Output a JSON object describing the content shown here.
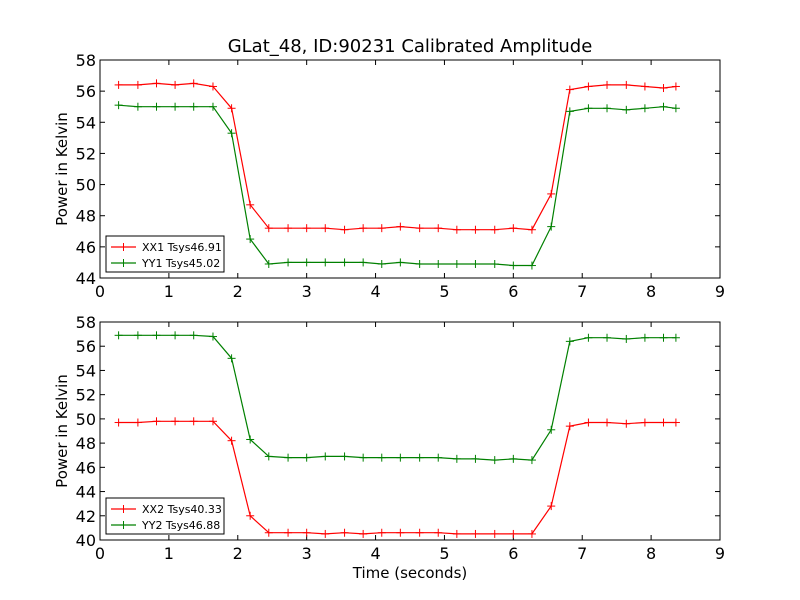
{
  "figure": {
    "title": "GLat_48, ID:90231 Calibrated Amplitude"
  },
  "chart_data": [
    {
      "type": "line",
      "title": "GLat_48, ID:90231 Calibrated Amplitude",
      "xlabel": "",
      "ylabel": "Power in Kelvin",
      "xlim": [
        0,
        9
      ],
      "ylim": [
        44,
        58
      ],
      "x_ticks": [
        0,
        1,
        2,
        3,
        4,
        5,
        6,
        7,
        8,
        9
      ],
      "y_ticks": [
        44,
        46,
        48,
        50,
        52,
        54,
        56,
        58
      ],
      "legend_position": "lower-left",
      "x": [
        0.27,
        0.55,
        0.82,
        1.09,
        1.36,
        1.64,
        1.91,
        2.18,
        2.45,
        2.73,
        3.0,
        3.27,
        3.55,
        3.82,
        4.09,
        4.36,
        4.64,
        4.91,
        5.18,
        5.45,
        5.73,
        6.0,
        6.27,
        6.55,
        6.82,
        7.09,
        7.36,
        7.64,
        7.91,
        8.18,
        8.36
      ],
      "series": [
        {
          "name": "XX1 Tsys46.91",
          "color": "#ff0000",
          "values": [
            56.4,
            56.4,
            56.5,
            56.4,
            56.5,
            56.3,
            54.9,
            48.7,
            47.2,
            47.2,
            47.2,
            47.2,
            47.1,
            47.2,
            47.2,
            47.3,
            47.2,
            47.2,
            47.1,
            47.1,
            47.1,
            47.2,
            47.1,
            49.4,
            56.1,
            56.3,
            56.4,
            56.4,
            56.3,
            56.2,
            56.3
          ]
        },
        {
          "name": "YY1 Tsys45.02",
          "color": "#008000",
          "values": [
            55.1,
            55.0,
            55.0,
            55.0,
            55.0,
            55.0,
            53.3,
            46.5,
            44.9,
            45.0,
            45.0,
            45.0,
            45.0,
            45.0,
            44.9,
            45.0,
            44.9,
            44.9,
            44.9,
            44.9,
            44.9,
            44.8,
            44.8,
            47.3,
            54.7,
            54.9,
            54.9,
            54.8,
            54.9,
            55.0,
            54.9
          ]
        }
      ]
    },
    {
      "type": "line",
      "title": "",
      "xlabel": "Time (seconds)",
      "ylabel": "Power in Kelvin",
      "xlim": [
        0,
        9
      ],
      "ylim": [
        40,
        58
      ],
      "x_ticks": [
        0,
        1,
        2,
        3,
        4,
        5,
        6,
        7,
        8,
        9
      ],
      "y_ticks": [
        40,
        42,
        44,
        46,
        48,
        50,
        52,
        54,
        56,
        58
      ],
      "legend_position": "lower-left",
      "x": [
        0.27,
        0.55,
        0.82,
        1.09,
        1.36,
        1.64,
        1.91,
        2.18,
        2.45,
        2.73,
        3.0,
        3.27,
        3.55,
        3.82,
        4.09,
        4.36,
        4.64,
        4.91,
        5.18,
        5.45,
        5.73,
        6.0,
        6.27,
        6.55,
        6.82,
        7.09,
        7.36,
        7.64,
        7.91,
        8.18,
        8.36
      ],
      "series": [
        {
          "name": "XX2 Tsys40.33",
          "color": "#ff0000",
          "values": [
            49.7,
            49.7,
            49.8,
            49.8,
            49.8,
            49.8,
            48.2,
            42.0,
            40.6,
            40.6,
            40.6,
            40.5,
            40.6,
            40.5,
            40.6,
            40.6,
            40.6,
            40.6,
            40.5,
            40.5,
            40.5,
            40.5,
            40.5,
            42.8,
            49.4,
            49.7,
            49.7,
            49.6,
            49.7,
            49.7,
            49.7
          ]
        },
        {
          "name": "YY2 Tsys46.88",
          "color": "#008000",
          "values": [
            56.9,
            56.9,
            56.9,
            56.9,
            56.9,
            56.8,
            55.0,
            48.3,
            46.9,
            46.8,
            46.8,
            46.9,
            46.9,
            46.8,
            46.8,
            46.8,
            46.8,
            46.8,
            46.7,
            46.7,
            46.6,
            46.7,
            46.6,
            49.1,
            56.4,
            56.7,
            56.7,
            56.6,
            56.7,
            56.7,
            56.7
          ]
        }
      ]
    }
  ]
}
